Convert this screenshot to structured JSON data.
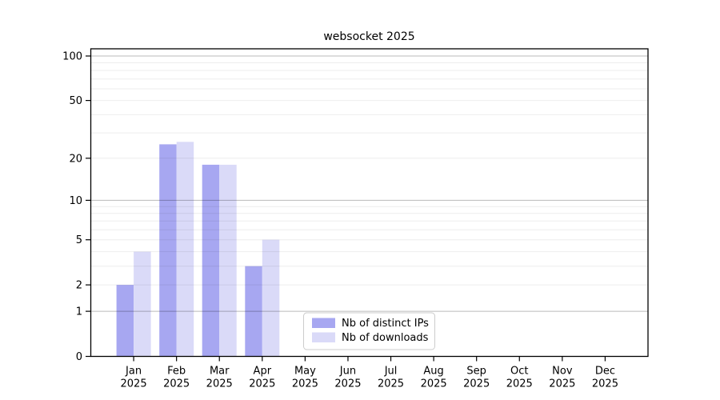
{
  "title": "websocket 2025",
  "chart_data": {
    "type": "bar",
    "title": "websocket 2025",
    "xlabel": "",
    "ylabel": "",
    "categories": [
      "Jan",
      "Feb",
      "Mar",
      "Apr",
      "May",
      "Jun",
      "Jul",
      "Aug",
      "Sep",
      "Oct",
      "Nov",
      "Dec"
    ],
    "x_tick_year": "2025",
    "series": [
      {
        "name": "Nb of distinct IPs",
        "color": "#a7a7f1",
        "values": [
          2,
          25,
          18,
          3,
          0,
          0,
          0,
          0,
          0,
          0,
          0,
          0
        ]
      },
      {
        "name": "Nb of downloads",
        "color": "#dadaf8",
        "values": [
          4,
          26,
          18,
          5,
          0,
          0,
          0,
          0,
          0,
          0,
          0,
          0
        ]
      }
    ],
    "yscale": "log1p",
    "yticks": [
      0,
      1,
      2,
      5,
      10,
      20,
      50,
      100
    ],
    "yticks_major_grid": [
      1,
      10,
      100
    ],
    "yticks_minor_grid": [
      2,
      3,
      4,
      5,
      6,
      7,
      8,
      9,
      20,
      30,
      40,
      50,
      60,
      70,
      80,
      90
    ],
    "ylim": [
      0,
      113
    ],
    "grid": true,
    "legend": {
      "items": [
        "Nb of distinct IPs",
        "Nb of downloads"
      ],
      "position": "lower center"
    },
    "axis_color": "#000000",
    "grid_major_color": "#bababa",
    "grid_minor_color": "#ededed",
    "background_color": "#ffffff"
  }
}
